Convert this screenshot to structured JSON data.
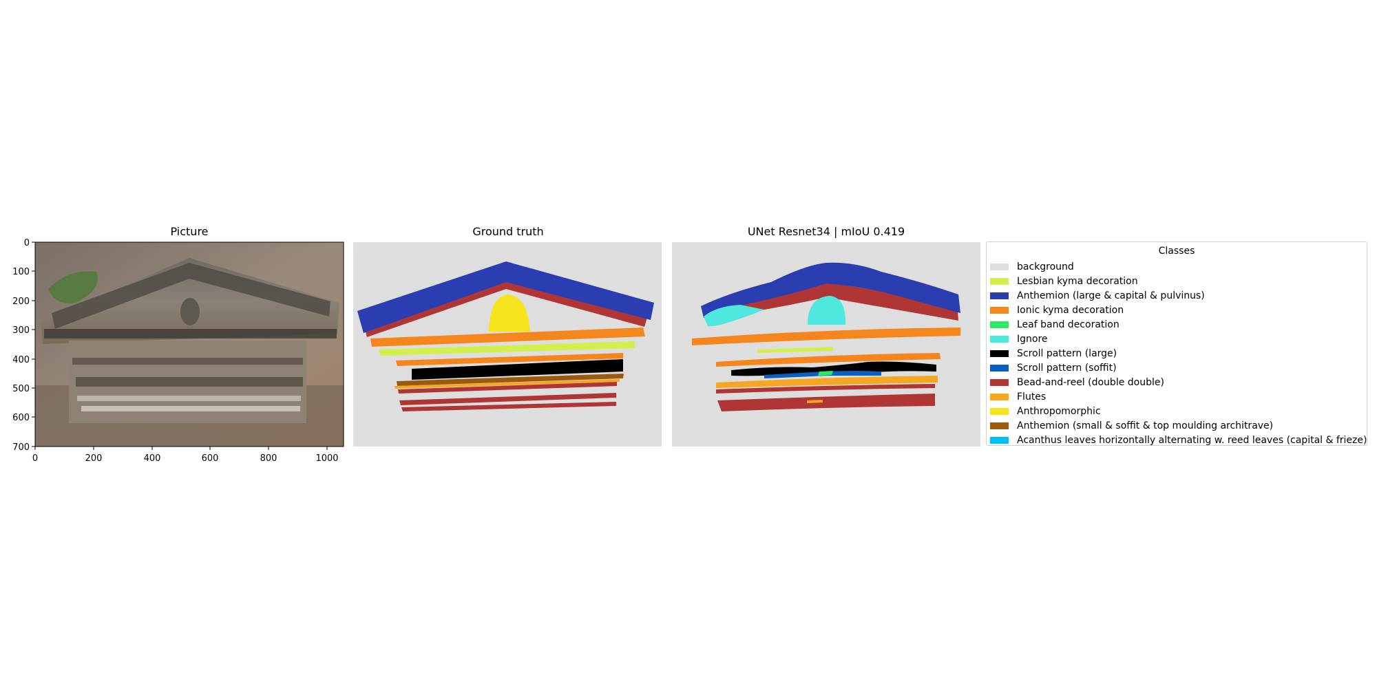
{
  "panels": [
    {
      "id": "picture",
      "title": "Picture"
    },
    {
      "id": "ground-truth",
      "title": "Ground truth"
    },
    {
      "id": "prediction",
      "title": "UNet Resnet34 | mIoU 0.419"
    }
  ],
  "axes": {
    "x_ticks": [
      "0",
      "200",
      "400",
      "600",
      "800",
      "1000"
    ],
    "y_ticks": [
      "0",
      "100",
      "200",
      "300",
      "400",
      "500",
      "600",
      "700"
    ]
  },
  "legend": {
    "title": "Classes",
    "items": [
      {
        "label": "background",
        "color": "#dedede"
      },
      {
        "label": "Lesbian kyma decoration",
        "color": "#d2f04d"
      },
      {
        "label": "Anthemion (large & capital & pulvinus)",
        "color": "#2a3db1"
      },
      {
        "label": "Ionic kyma decoration",
        "color": "#f5861d"
      },
      {
        "label": "Leaf band decoration",
        "color": "#2ee866"
      },
      {
        "label": "Ignore",
        "color": "#4ee8de"
      },
      {
        "label": "Scroll pattern (large)",
        "color": "#000000"
      },
      {
        "label": "Scroll pattern (soffit)",
        "color": "#0a5fbf"
      },
      {
        "label": "Bead-and-reel (double double)",
        "color": "#b03535"
      },
      {
        "label": "Flutes",
        "color": "#f5a623"
      },
      {
        "label": "Anthropomorphic",
        "color": "#f7e41c"
      },
      {
        "label": "Anthemion (small & soffit & top moulding architrave)",
        "color": "#9a5a10"
      },
      {
        "label": "Acanthus leaves horizontally alternating w. reed leaves (capital & frieze)",
        "color": "#00bff5"
      }
    ]
  }
}
